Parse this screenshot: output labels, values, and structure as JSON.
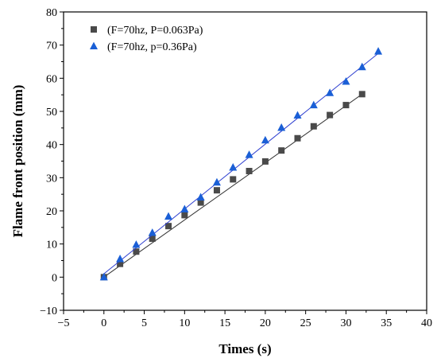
{
  "chart_data": {
    "type": "scatter",
    "title": "",
    "xlabel": "Times (s)",
    "ylabel": "Flame front position (mm)",
    "xlim": [
      -5,
      40
    ],
    "ylim": [
      -10,
      80
    ],
    "xticks": [
      -5,
      0,
      5,
      10,
      15,
      20,
      25,
      30,
      35,
      40
    ],
    "yticks": [
      -10,
      0,
      10,
      20,
      30,
      40,
      50,
      60,
      70,
      80
    ],
    "grid": false,
    "legend_position": "top-left",
    "series": [
      {
        "name": "(F=70hz, P=0.063Pa)",
        "marker": "square",
        "color": "#4a4a4a",
        "fit_line_color": "#333333",
        "x": [
          0,
          2,
          4,
          6,
          8,
          10,
          12,
          14,
          16,
          18,
          20,
          22,
          24,
          26,
          28,
          30,
          32
        ],
        "y": [
          0,
          4.0,
          7.7,
          11.6,
          15.4,
          18.7,
          22.5,
          26.2,
          29.5,
          32.0,
          34.9,
          38.2,
          41.9,
          45.5,
          48.9,
          51.9,
          55.2
        ],
        "fit": [
          [
            0,
            0
          ],
          [
            32,
            55.2
          ]
        ]
      },
      {
        "name": "(F=70hz, p=0.36Pa)",
        "marker": "triangle",
        "color": "#1a5fd6",
        "fit_line_color": "#2e3fd0",
        "x": [
          0,
          2,
          4,
          6,
          8,
          10,
          12,
          14,
          16,
          18,
          20,
          22,
          24,
          26,
          28,
          30,
          32,
          34
        ],
        "y": [
          0,
          5.5,
          9.8,
          13.4,
          18.3,
          20.5,
          24.1,
          28.6,
          33.1,
          36.9,
          41.3,
          45.1,
          48.8,
          51.9,
          55.6,
          59.0,
          63.4,
          68.1
        ],
        "fit": [
          [
            0,
            1.0
          ],
          [
            34,
            67.5
          ]
        ]
      }
    ]
  }
}
